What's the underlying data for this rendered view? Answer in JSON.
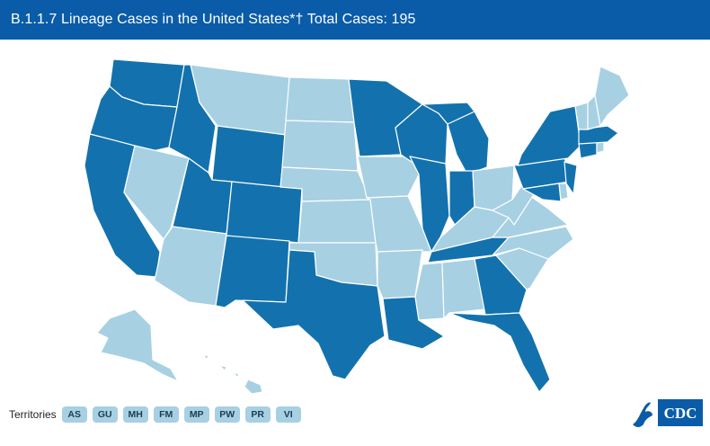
{
  "header": {
    "title": "B.1.1.7 Lineage Cases in the United States*† Total Cases: 195"
  },
  "legend_colors": {
    "has_cases": "#1372ad",
    "no_cases": "#a7d0e3",
    "header": "#0a5ca8"
  },
  "states_with_cases": [
    "WA",
    "OR",
    "CA",
    "ID",
    "UT",
    "WY",
    "CO",
    "NM",
    "TX",
    "MN",
    "WI",
    "IL",
    "IN",
    "MI",
    "LA",
    "TN",
    "GA",
    "FL",
    "NY",
    "PA",
    "NJ",
    "MD",
    "CT",
    "MA"
  ],
  "territories": {
    "label": "Territories",
    "items": [
      "AS",
      "GU",
      "MH",
      "FM",
      "MP",
      "PW",
      "PR",
      "VI"
    ]
  },
  "logo": {
    "text": "CDC"
  }
}
